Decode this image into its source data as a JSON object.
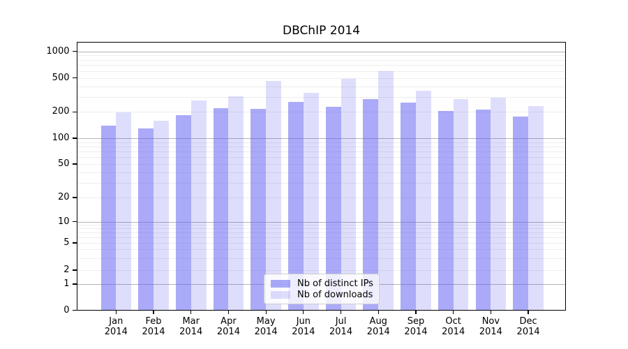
{
  "chart_data": {
    "type": "bar",
    "title": "DBChIP 2014",
    "categories": [
      "Jan 2014",
      "Feb 2014",
      "Mar 2014",
      "Apr 2014",
      "May 2014",
      "Jun 2014",
      "Jul 2014",
      "Aug 2014",
      "Sep 2014",
      "Oct 2014",
      "Nov 2014",
      "Dec 2014"
    ],
    "series": [
      {
        "name": "Nb of distinct IPs",
        "color": "rgba(92,92,242,0.52)",
        "values": [
          138,
          129,
          183,
          219,
          216,
          260,
          230,
          280,
          257,
          206,
          212,
          177
        ]
      },
      {
        "name": "Nb of downloads",
        "color": "rgba(92,92,242,0.20)",
        "values": [
          196,
          158,
          274,
          305,
          460,
          335,
          490,
          595,
          357,
          284,
          291,
          236
        ]
      }
    ],
    "y_axis": {
      "scale": "symlog",
      "ticks": [
        0,
        1,
        2,
        5,
        10,
        20,
        50,
        100,
        200,
        500,
        1000
      ],
      "range": [
        0,
        1000
      ]
    },
    "x_axis": {
      "label": ""
    },
    "grid": {
      "show": true,
      "minor_color": "#ededed",
      "major_color": "#b3b3b3"
    },
    "legend": {
      "position": "lower center",
      "entries": [
        "Nb of distinct IPs",
        "Nb of downloads"
      ]
    }
  },
  "colors": {
    "background": "#ffffff",
    "axis": "#000000",
    "text": "#000000"
  }
}
